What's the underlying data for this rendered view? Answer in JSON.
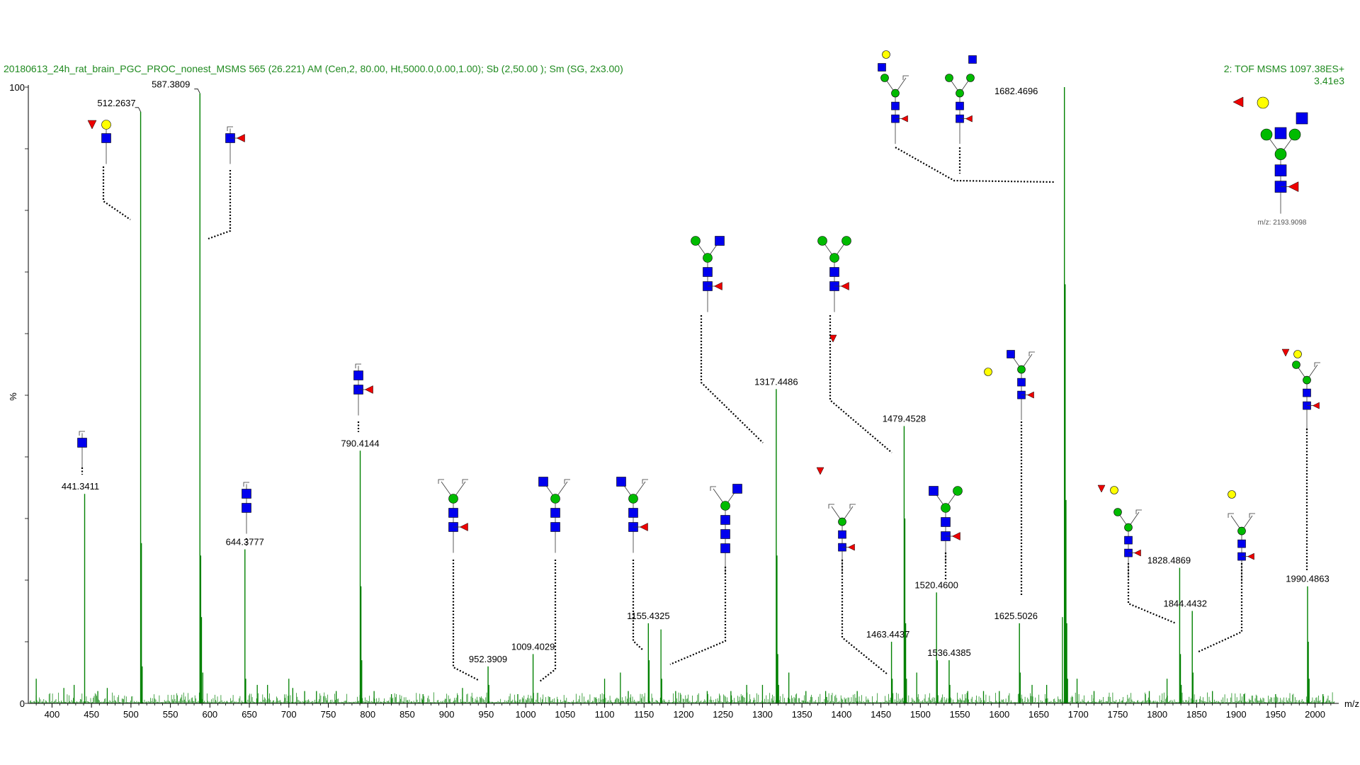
{
  "header": {
    "left": "20180613_24h_rat_brain_PGC_PROC_nonest_MSMS 565 (26.221) AM (Cen,2, 80.00, Ht,5000.0,0.00,1.00); Sb (2,50.00 ); Sm (SG, 2x3.00)",
    "right_line1": "2: TOF MSMS 1097.38ES+",
    "right_line2": "3.41e3"
  },
  "colors": {
    "spectrum": "#008000",
    "header_text": "#1f8a1f",
    "glcnac": "#0000ee",
    "mannose": "#00bb00",
    "galactose": "#ffff00",
    "fucose": "#ee0000"
  },
  "precursor_note": "m/z: 2193.9098",
  "chart_data": {
    "type": "line",
    "xlabel": "m/z",
    "ylabel": "%",
    "xlim": [
      370,
      2030
    ],
    "ylim": [
      0,
      100
    ],
    "x_ticks": [
      "400",
      "450",
      "500",
      "550",
      "600",
      "650",
      "700",
      "750",
      "800",
      "850",
      "900",
      "950",
      "1000",
      "1050",
      "1100",
      "1150",
      "1200",
      "1250",
      "1300",
      "1350",
      "1400",
      "1450",
      "1500",
      "1550",
      "1600",
      "1650",
      "1700",
      "1750",
      "1800",
      "1850",
      "1900",
      "1950",
      "2000"
    ],
    "y_ticks": [
      "0",
      "100"
    ],
    "labeled_peaks": [
      {
        "mz": 441.3411,
        "label": "441.3411",
        "intensity": 34
      },
      {
        "mz": 512.2637,
        "label": "512.2637",
        "intensity": 96
      },
      {
        "mz": 587.3809,
        "label": "587.3809",
        "intensity": 99
      },
      {
        "mz": 644.3777,
        "label": "644.3777",
        "intensity": 25
      },
      {
        "mz": 790.4144,
        "label": "790.4144",
        "intensity": 41
      },
      {
        "mz": 952.3909,
        "label": "952.3909",
        "intensity": 6
      },
      {
        "mz": 1009.4029,
        "label": "1009.4029",
        "intensity": 8
      },
      {
        "mz": 1155.4325,
        "label": "1155.4325",
        "intensity": 13
      },
      {
        "mz": 1317.4486,
        "label": "1317.4486",
        "intensity": 51
      },
      {
        "mz": 1463.4437,
        "label": "1463.4437",
        "intensity": 10
      },
      {
        "mz": 1479.4528,
        "label": "1479.4528",
        "intensity": 45
      },
      {
        "mz": 1520.46,
        "label": "1520.4600",
        "intensity": 18
      },
      {
        "mz": 1536.4385,
        "label": "1536.4385",
        "intensity": 7
      },
      {
        "mz": 1625.5026,
        "label": "1625.5026",
        "intensity": 13
      },
      {
        "mz": 1682.4696,
        "label": "1682.4696",
        "intensity": 100
      },
      {
        "mz": 1828.4869,
        "label": "1828.4869",
        "intensity": 22
      },
      {
        "mz": 1844.4432,
        "label": "1844.4432",
        "intensity": 15
      },
      {
        "mz": 1990.4863,
        "label": "1990.4863",
        "intensity": 19
      }
    ],
    "minor_peaks": [
      {
        "mz": 380,
        "intensity": 4
      },
      {
        "mz": 415,
        "intensity": 2.5
      },
      {
        "mz": 428,
        "intensity": 3
      },
      {
        "mz": 458,
        "intensity": 2
      },
      {
        "mz": 470,
        "intensity": 2.5
      },
      {
        "mz": 513.3,
        "intensity": 26
      },
      {
        "mz": 514.3,
        "intensity": 6
      },
      {
        "mz": 588.4,
        "intensity": 24
      },
      {
        "mz": 589.4,
        "intensity": 14
      },
      {
        "mz": 591,
        "intensity": 5
      },
      {
        "mz": 645.4,
        "intensity": 4
      },
      {
        "mz": 660,
        "intensity": 3
      },
      {
        "mz": 673,
        "intensity": 3
      },
      {
        "mz": 700,
        "intensity": 4
      },
      {
        "mz": 705,
        "intensity": 2.5
      },
      {
        "mz": 720,
        "intensity": 2
      },
      {
        "mz": 735,
        "intensity": 2
      },
      {
        "mz": 760,
        "intensity": 2
      },
      {
        "mz": 791.4,
        "intensity": 19
      },
      {
        "mz": 792.4,
        "intensity": 7
      },
      {
        "mz": 808,
        "intensity": 2
      },
      {
        "mz": 830,
        "intensity": 1.5
      },
      {
        "mz": 870,
        "intensity": 1.5
      },
      {
        "mz": 920,
        "intensity": 2.5
      },
      {
        "mz": 953.4,
        "intensity": 3
      },
      {
        "mz": 990,
        "intensity": 1.5
      },
      {
        "mz": 1100,
        "intensity": 4
      },
      {
        "mz": 1120,
        "intensity": 5
      },
      {
        "mz": 1130,
        "intensity": 2
      },
      {
        "mz": 1156.4,
        "intensity": 7
      },
      {
        "mz": 1171.4,
        "intensity": 12
      },
      {
        "mz": 1172.4,
        "intensity": 4
      },
      {
        "mz": 1190,
        "intensity": 2
      },
      {
        "mz": 1230,
        "intensity": 2
      },
      {
        "mz": 1260,
        "intensity": 2
      },
      {
        "mz": 1280,
        "intensity": 3
      },
      {
        "mz": 1300,
        "intensity": 3
      },
      {
        "mz": 1318.4,
        "intensity": 24
      },
      {
        "mz": 1319.4,
        "intensity": 8
      },
      {
        "mz": 1320.4,
        "intensity": 3
      },
      {
        "mz": 1333.4,
        "intensity": 5
      },
      {
        "mz": 1355,
        "intensity": 2
      },
      {
        "mz": 1380,
        "intensity": 2
      },
      {
        "mz": 1420,
        "intensity": 2
      },
      {
        "mz": 1464.4,
        "intensity": 4
      },
      {
        "mz": 1480.4,
        "intensity": 30
      },
      {
        "mz": 1481.4,
        "intensity": 13
      },
      {
        "mz": 1482.4,
        "intensity": 4
      },
      {
        "mz": 1495.4,
        "intensity": 5
      },
      {
        "mz": 1521.5,
        "intensity": 7
      },
      {
        "mz": 1537.4,
        "intensity": 3
      },
      {
        "mz": 1560,
        "intensity": 2
      },
      {
        "mz": 1580,
        "intensity": 2
      },
      {
        "mz": 1600,
        "intensity": 2
      },
      {
        "mz": 1626.5,
        "intensity": 5
      },
      {
        "mz": 1641.5,
        "intensity": 3
      },
      {
        "mz": 1660,
        "intensity": 3
      },
      {
        "mz": 1680,
        "intensity": 14
      },
      {
        "mz": 1683.5,
        "intensity": 68
      },
      {
        "mz": 1684.5,
        "intensity": 33
      },
      {
        "mz": 1685.5,
        "intensity": 13
      },
      {
        "mz": 1686.5,
        "intensity": 4
      },
      {
        "mz": 1698.5,
        "intensity": 4
      },
      {
        "mz": 1720,
        "intensity": 2
      },
      {
        "mz": 1790,
        "intensity": 2
      },
      {
        "mz": 1812.5,
        "intensity": 4
      },
      {
        "mz": 1829.5,
        "intensity": 8
      },
      {
        "mz": 1830.5,
        "intensity": 3
      },
      {
        "mz": 1845.4,
        "intensity": 5
      },
      {
        "mz": 1870,
        "intensity": 2
      },
      {
        "mz": 1910,
        "intensity": 1.5
      },
      {
        "mz": 1950,
        "intensity": 1.5
      },
      {
        "mz": 1991.5,
        "intensity": 10
      },
      {
        "mz": 1992.5,
        "intensity": 4
      },
      {
        "mz": 2010,
        "intensity": 1.5
      }
    ]
  }
}
